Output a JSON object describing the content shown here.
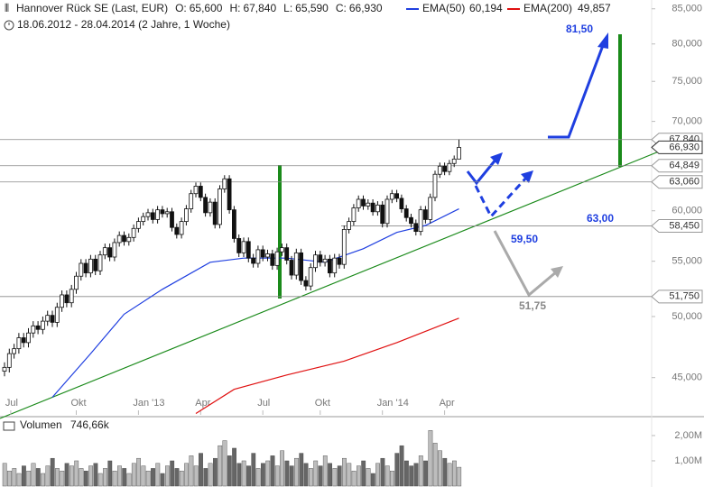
{
  "chart_data": {
    "type": "candlestick",
    "title": "Hannover Rück SE (Last, EUR)",
    "quote": [
      {
        "label": "O:",
        "value": "65,600"
      },
      {
        "label": "H:",
        "value": "67,840"
      },
      {
        "label": "L:",
        "value": "65,590"
      },
      {
        "label": "C:",
        "value": "66,930"
      }
    ],
    "subtitle": "18.06.2012 - 28.04.2014 (2 Jahre, 1 Woche)",
    "ylog": true,
    "ylim": [
      42200,
      86300
    ],
    "yticks": [
      {
        "value": 85000,
        "label": "85,000"
      },
      {
        "value": 80000,
        "label": "80,000"
      },
      {
        "value": 75000,
        "label": "75,000"
      },
      {
        "value": 70000,
        "label": "70,000"
      },
      {
        "value": 60000,
        "label": "60,000"
      },
      {
        "value": 55000,
        "label": "55,000"
      },
      {
        "value": 50000,
        "label": "50,000"
      },
      {
        "value": 45000,
        "label": "45,000"
      }
    ],
    "xticks": [
      {
        "value": 1.3,
        "label": "Jul"
      },
      {
        "value": 15,
        "label": "Okt"
      },
      {
        "value": 28,
        "label": "Jan '13"
      },
      {
        "value": 41,
        "label": "Apr"
      },
      {
        "value": 54,
        "label": "Jul"
      },
      {
        "value": 66,
        "label": "Okt"
      },
      {
        "value": 79,
        "label": "Jan '14"
      },
      {
        "value": 92,
        "label": "Apr"
      }
    ],
    "open": [
      45500,
      45800,
      46900,
      47300,
      48200,
      47800,
      48600,
      49200,
      48900,
      49600,
      50100,
      49500,
      50800,
      51900,
      51200,
      52400,
      53600,
      54800,
      53900,
      55200,
      54100,
      55600,
      56300,
      55400,
      56800,
      57500,
      56900,
      57300,
      58200,
      58900,
      59400,
      59800,
      59100,
      60100,
      59700,
      59900,
      58300,
      57600,
      58900,
      60200,
      61800,
      62600,
      61400,
      59800,
      60900,
      58600,
      62300,
      63400,
      60100,
      57200,
      55800,
      56900,
      55300,
      54800,
      56100,
      55400,
      55700,
      54600,
      55900,
      56300,
      55100,
      53700,
      55800,
      53200,
      52700,
      54400,
      55600,
      54900,
      55200,
      53900,
      55300,
      54700,
      58100,
      58900,
      60300,
      61200,
      60500,
      60800,
      59900,
      60600,
      58700,
      61200,
      61800,
      61300,
      60200,
      59300,
      58700,
      57900,
      60100,
      59100,
      61400,
      63900,
      64800,
      64200,
      65100,
      65600
    ],
    "high": [
      46200,
      47300,
      47700,
      48600,
      48600,
      49000,
      49600,
      49600,
      50000,
      50500,
      50500,
      51200,
      52300,
      52300,
      52800,
      54000,
      55200,
      55200,
      55600,
      55600,
      56000,
      56700,
      56700,
      57200,
      57900,
      57900,
      57700,
      58600,
      59300,
      59800,
      60200,
      60200,
      60500,
      60500,
      60300,
      60300,
      58700,
      59300,
      60600,
      62200,
      63000,
      63000,
      61800,
      61300,
      61300,
      62700,
      63800,
      63800,
      60500,
      57600,
      57300,
      57300,
      55700,
      56500,
      56500,
      56100,
      56100,
      56300,
      56700,
      56700,
      55500,
      56200,
      56200,
      53600,
      54800,
      56000,
      56000,
      55600,
      55600,
      55700,
      55700,
      58500,
      59300,
      60700,
      61600,
      61600,
      61200,
      61200,
      61000,
      61000,
      61600,
      62200,
      62200,
      61700,
      60600,
      59700,
      59100,
      60500,
      60500,
      61800,
      64300,
      65200,
      65200,
      65500,
      66000,
      67840
    ],
    "low": [
      45100,
      45400,
      46500,
      46900,
      47400,
      47400,
      48200,
      48500,
      48500,
      49200,
      49100,
      49100,
      50400,
      50800,
      50800,
      52000,
      53200,
      53500,
      53500,
      53700,
      53700,
      55200,
      55000,
      55000,
      56400,
      56500,
      56500,
      56900,
      57800,
      58500,
      59000,
      58700,
      58700,
      59300,
      59300,
      57900,
      57200,
      57200,
      58500,
      59800,
      61400,
      61000,
      59400,
      59400,
      58200,
      58200,
      61900,
      59700,
      56800,
      55400,
      55400,
      54900,
      54400,
      54400,
      55000,
      55000,
      54200,
      54200,
      55500,
      54700,
      53300,
      53300,
      52800,
      52300,
      52300,
      54000,
      54500,
      54500,
      53500,
      53500,
      54300,
      54300,
      57700,
      58500,
      59900,
      60100,
      60100,
      59500,
      59500,
      58300,
      58300,
      60800,
      60900,
      59800,
      58900,
      58300,
      57500,
      57500,
      58700,
      58700,
      61000,
      63500,
      63800,
      63800,
      64700,
      65590
    ],
    "close": [
      45800,
      46900,
      47300,
      48200,
      47800,
      48600,
      49200,
      48900,
      49600,
      50100,
      49500,
      50800,
      51900,
      51200,
      52400,
      53600,
      54800,
      53900,
      55200,
      54100,
      55600,
      56300,
      55400,
      56800,
      57500,
      56900,
      57300,
      58200,
      58900,
      59400,
      59800,
      59100,
      60100,
      59700,
      59900,
      58300,
      57600,
      58900,
      60200,
      61800,
      62600,
      61400,
      59800,
      60900,
      58600,
      62300,
      63400,
      60100,
      57200,
      55800,
      56900,
      55300,
      54800,
      56100,
      55400,
      55700,
      54600,
      55900,
      56300,
      55100,
      53700,
      55800,
      53200,
      52700,
      54400,
      55600,
      54900,
      55200,
      53900,
      55300,
      54700,
      58100,
      58900,
      60300,
      61200,
      60500,
      60800,
      59900,
      60600,
      58700,
      61200,
      61800,
      61300,
      60200,
      59300,
      58700,
      57900,
      60100,
      59100,
      61400,
      63900,
      64800,
      64200,
      65100,
      65600,
      66930
    ],
    "series": [
      {
        "name": "EMA(50)",
        "value_label": "60,194",
        "color": "#1f3fe0",
        "x": [
          10,
          18,
          25,
          33,
          43,
          50,
          59,
          67,
          75,
          82,
          88,
          95
        ],
        "values": [
          43500,
          46900,
          50200,
          52400,
          54900,
          55300,
          55300,
          54900,
          56200,
          57800,
          58500,
          60194
        ]
      },
      {
        "name": "EMA(200)",
        "value_label": "49,857",
        "color": "#e01010",
        "x": [
          40,
          48,
          59,
          71,
          82,
          95
        ],
        "values": [
          42300,
          44100,
          45200,
          46300,
          47800,
          49857
        ]
      }
    ],
    "levels": [
      {
        "value": 67840,
        "label": "67,840"
      },
      {
        "value": 66930,
        "label": "66,930"
      },
      {
        "value": 64849,
        "label": "64,849"
      },
      {
        "value": 63060,
        "label": "63,060"
      },
      {
        "value": 58450,
        "label": "58,450"
      },
      {
        "value": 51750,
        "label": "51,750"
      }
    ],
    "annotations": [
      "81,50",
      "63,00",
      "59,50",
      "51,75"
    ],
    "volume": {
      "title": "Volumen",
      "value_label": "746,66k",
      "ylim": [
        0,
        2.64
      ],
      "yticks": [
        {
          "value": 2,
          "label": "2,00M"
        },
        {
          "value": 1,
          "label": "1,00M"
        }
      ],
      "values": [
        0.9,
        0.6,
        0.7,
        0.5,
        0.8,
        0.6,
        0.9,
        0.7,
        0.5,
        0.8,
        1.1,
        0.7,
        0.6,
        0.9,
        0.8,
        1.0,
        0.7,
        0.6,
        0.8,
        0.9,
        0.5,
        0.7,
        1.0,
        0.6,
        0.8,
        0.7,
        0.5,
        0.9,
        1.1,
        0.8,
        0.6,
        0.7,
        0.9,
        0.5,
        0.8,
        1.0,
        0.7,
        0.6,
        0.9,
        1.2,
        0.8,
        1.3,
        0.7,
        0.9,
        1.1,
        1.6,
        1.8,
        1.2,
        1.5,
        0.9,
        1.0,
        0.8,
        1.3,
        0.7,
        0.9,
        1.0,
        1.2,
        0.8,
        1.4,
        1.0,
        0.8,
        1.1,
        1.3,
        0.9,
        0.7,
        1.0,
        0.8,
        1.2,
        0.9,
        0.7,
        0.8,
        1.1,
        0.9,
        0.6,
        0.8,
        1.0,
        0.7,
        0.5,
        0.9,
        1.1,
        0.8,
        0.6,
        1.3,
        1.6,
        1.0,
        0.8,
        0.9,
        1.2,
        1.0,
        2.2,
        1.7,
        1.4,
        1.1,
        0.9,
        1.0,
        0.74666
      ]
    }
  }
}
